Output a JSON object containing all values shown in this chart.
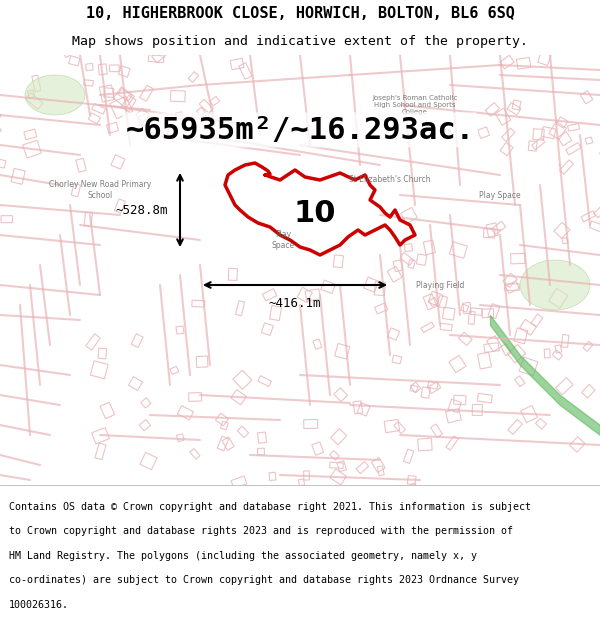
{
  "title_line1": "10, HIGHERBROOK CLOSE, HORWICH, BOLTON, BL6 6SQ",
  "title_line2": "Map shows position and indicative extent of the property.",
  "area_text": "~65935m²/~16.293ac.",
  "label_number": "10",
  "dim_vertical": "~528.8m",
  "dim_horizontal": "~416.1m",
  "footer_lines": [
    "Contains OS data © Crown copyright and database right 2021. This information is subject",
    "to Crown copyright and database rights 2023 and is reproduced with the permission of",
    "HM Land Registry. The polygons (including the associated geometry, namely x, y",
    "co-ordinates) are subject to Crown copyright and database rights 2023 Ordnance Survey",
    "100026316."
  ],
  "map_bg_color": "#f5f0eb",
  "road_color": "#e8b4b8",
  "highlight_color": "#cc0000",
  "fig_width": 6.0,
  "fig_height": 6.25,
  "dpi": 100
}
